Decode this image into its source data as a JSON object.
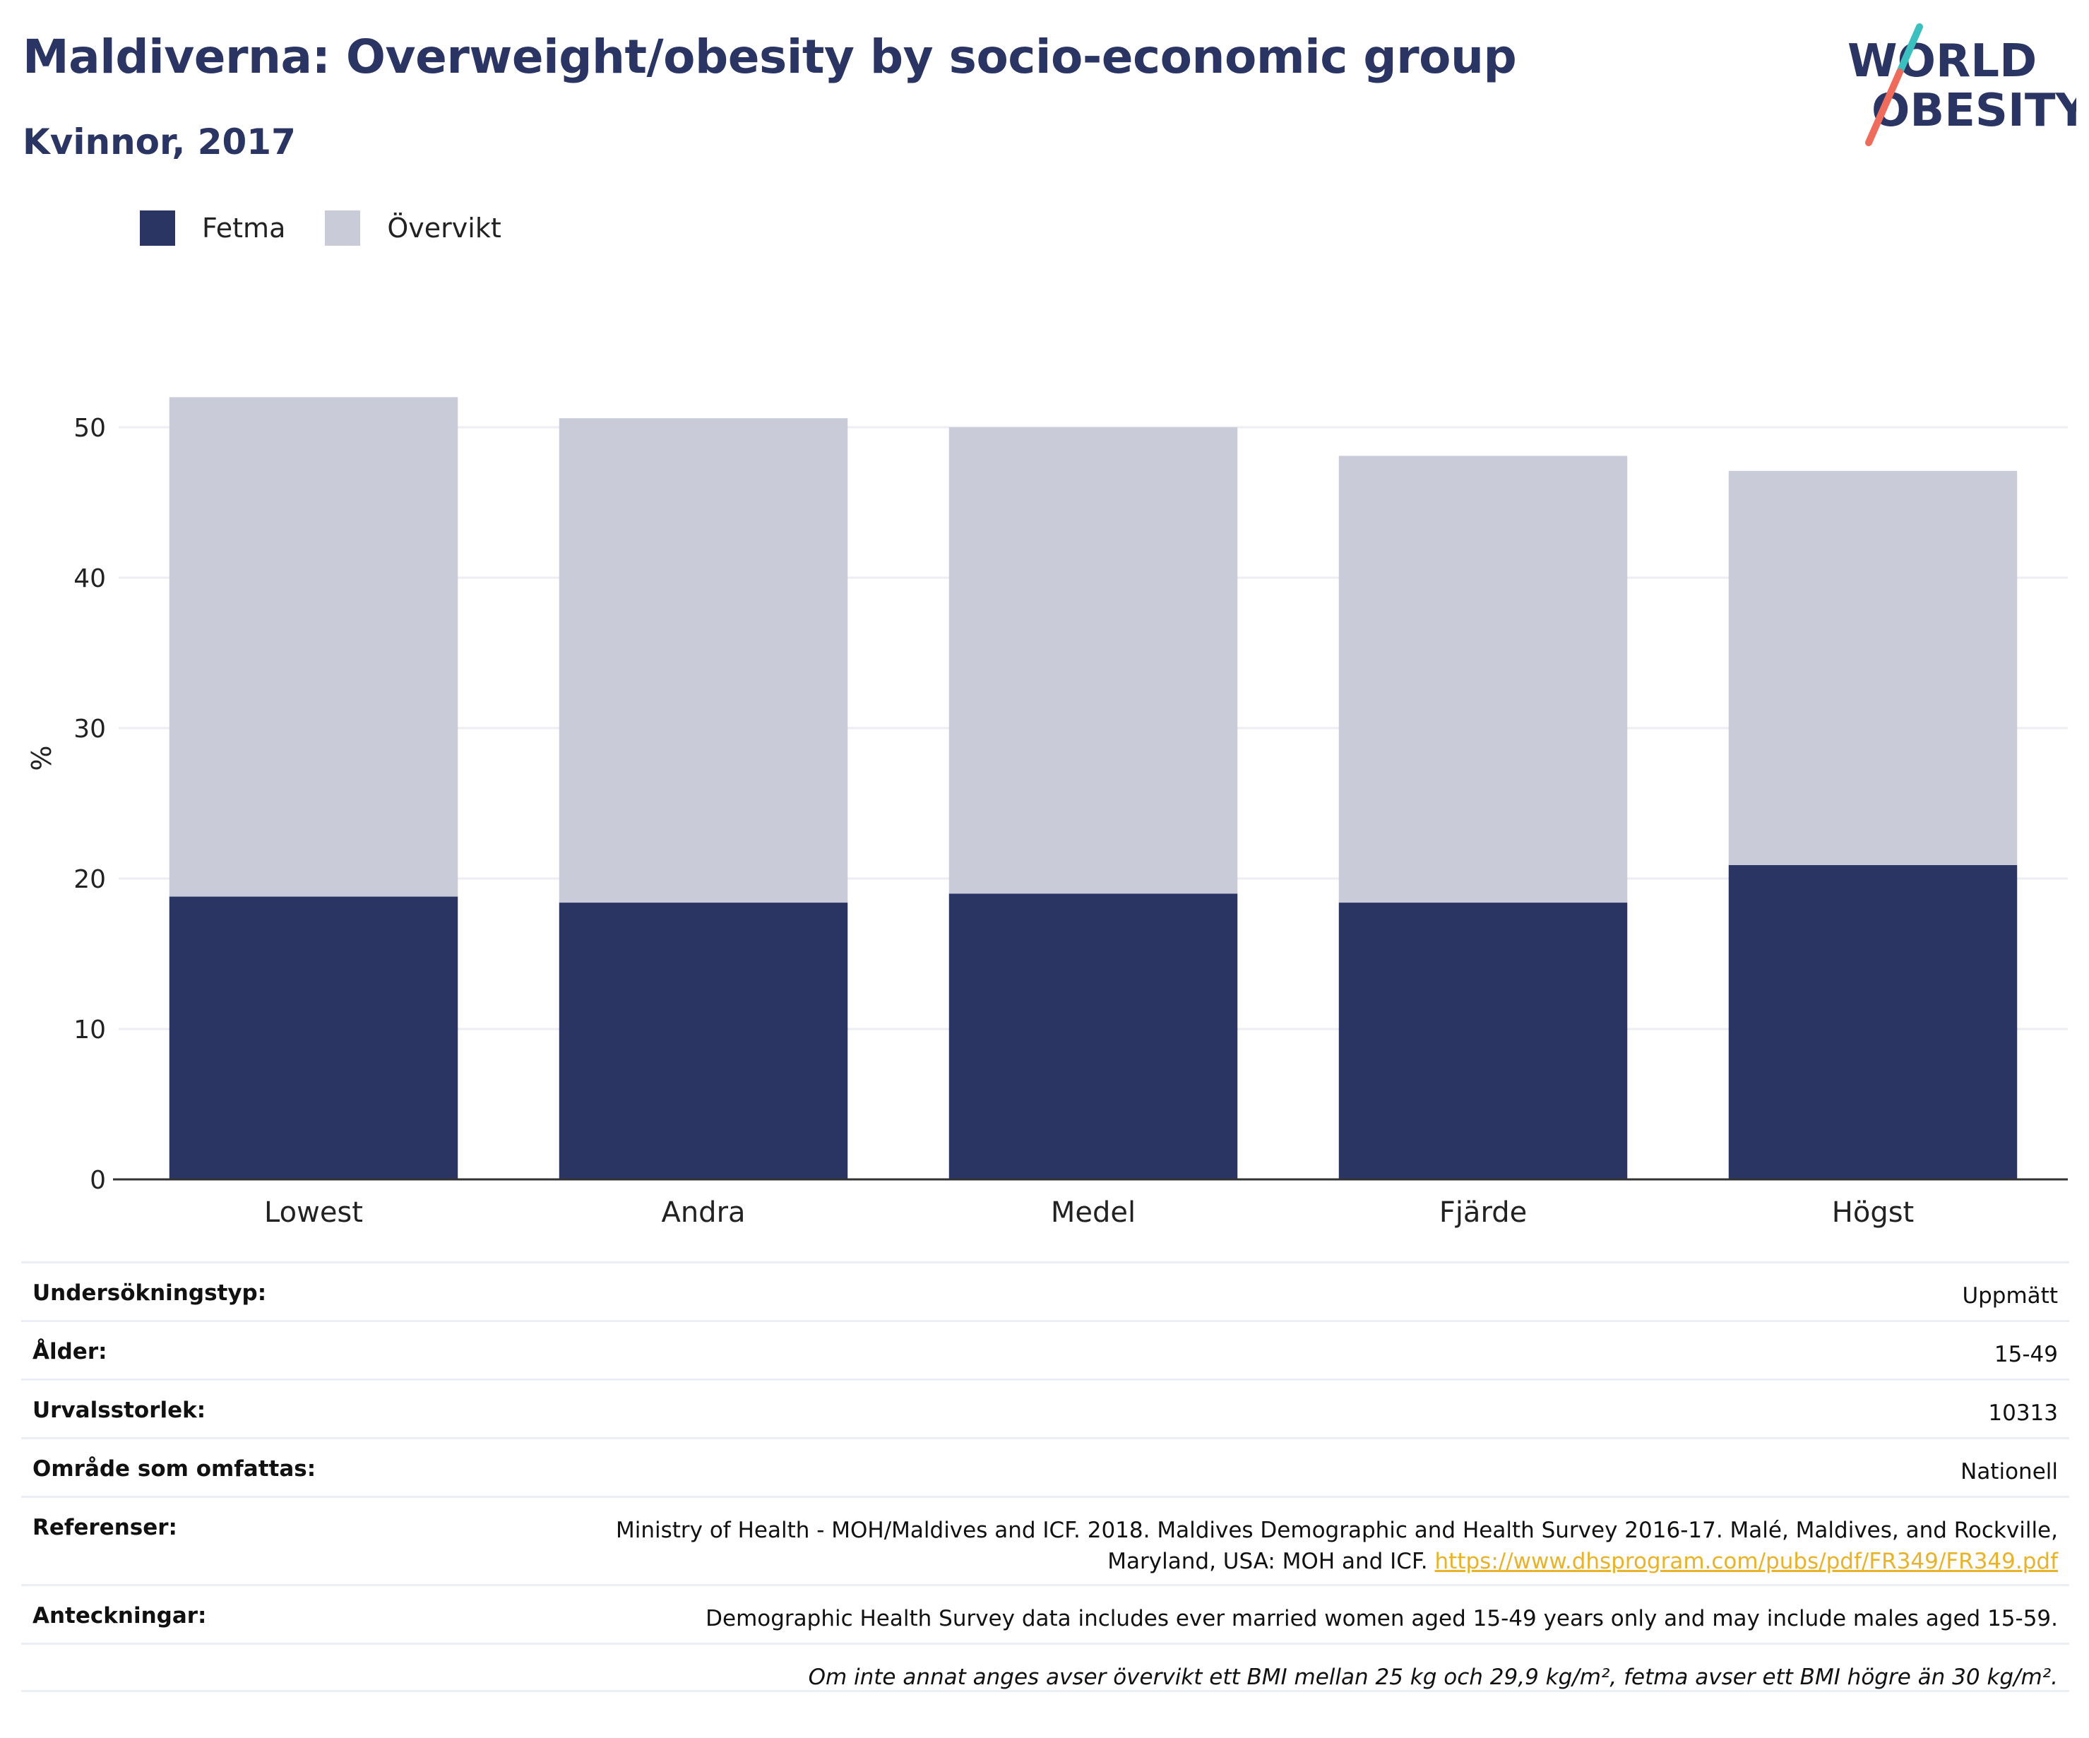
{
  "header": {
    "title": "Maldiverna: Overweight/obesity by socio-economic group",
    "subtitle": "Kvinnor, 2017"
  },
  "logo": {
    "line1": "WORLD",
    "line2": "OBESITY",
    "accent_teal": "#3bbfbf",
    "accent_coral": "#ef6b5b",
    "text_color": "#2b3563"
  },
  "legend": {
    "items": [
      {
        "label": "Fetma",
        "color": "#2b3563"
      },
      {
        "label": "Övervikt",
        "color": "#c9ccd8"
      }
    ]
  },
  "chart_data": {
    "type": "bar",
    "stacked": true,
    "categories": [
      "Lowest",
      "Andra",
      "Medel",
      "Fjärde",
      "Högst"
    ],
    "series": [
      {
        "name": "Fetma",
        "color": "#2b3563",
        "values": [
          18.8,
          18.4,
          19.0,
          18.4,
          20.9
        ]
      },
      {
        "name": "Övervikt",
        "color": "#c9ccd8",
        "values": [
          33.2,
          32.2,
          31.0,
          29.7,
          26.2
        ]
      }
    ],
    "ylabel": "%",
    "ylim": [
      0,
      55
    ],
    "yticks": [
      0,
      10,
      20,
      30,
      40,
      50
    ],
    "grid": true,
    "legend_position": "top-left"
  },
  "meta": {
    "rows": [
      {
        "label": "Undersökningstyp:",
        "value": "Uppmätt"
      },
      {
        "label": "Ålder:",
        "value": "15-49"
      },
      {
        "label": "Urvalsstorlek:",
        "value": "10313"
      },
      {
        "label": "Område som omfattas:",
        "value": "Nationell"
      }
    ],
    "references": {
      "label": "Referenser:",
      "line1": "Ministry of Health - MOH/Maldives and ICF. 2018. Maldives Demographic and Health Survey 2016-17. Malé, Maldives, and Rockville,",
      "line2": "Maryland, USA: MOH and ICF.",
      "link": "https://www.dhsprogram.com/pubs/pdf/FR349/FR349.pdf"
    },
    "notes": {
      "label": "Anteckningar:",
      "value": "Demographic Health Survey data includes ever married women aged 15-49 years only and may include males aged 15-59."
    },
    "footnote": "Om inte annat anges avser övervikt ett BMI mellan 25 kg och 29,9 kg/m², fetma avser ett BMI högre än 30 kg/m²."
  }
}
